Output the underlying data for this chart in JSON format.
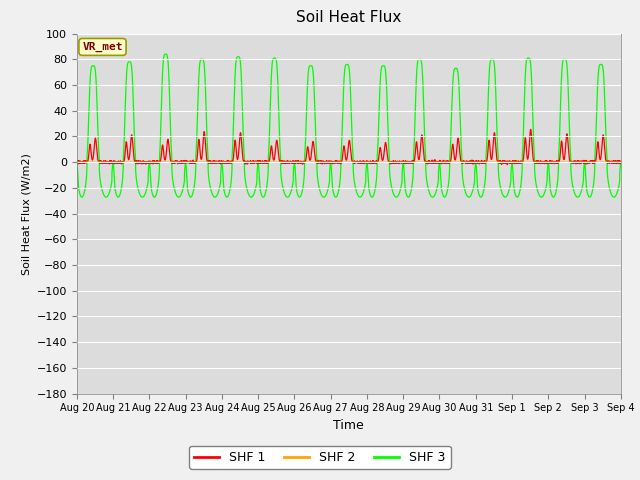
{
  "title": "Soil Heat Flux",
  "ylabel": "Soil Heat Flux (W/m2)",
  "xlabel": "Time",
  "ylim": [
    -180,
    100
  ],
  "yticks": [
    100,
    80,
    60,
    40,
    20,
    0,
    -20,
    -40,
    -60,
    -80,
    -100,
    -120,
    -140,
    -160,
    -180
  ],
  "x_tick_labels": [
    "Aug 20",
    "Aug 21",
    "Aug 22",
    "Aug 23",
    "Aug 24",
    "Aug 25",
    "Aug 26",
    "Aug 27",
    "Aug 28",
    "Aug 29",
    "Aug 30",
    "Aug 31",
    "Sep 1",
    "Sep 2",
    "Sep 3",
    "Sep 4"
  ],
  "num_days": 15,
  "shf1_color": "#ff0000",
  "shf2_color": "#ffa500",
  "shf3_color": "#00ff00",
  "bg_color": "#dcdcdc",
  "fig_color": "#f0f0f0",
  "legend_label1": "SHF 1",
  "legend_label2": "SHF 2",
  "legend_label3": "SHF 3",
  "annotation_text": "VR_met",
  "annotation_color": "#800000",
  "annotation_bg": "#ffffcc",
  "annotation_edge": "#999900"
}
